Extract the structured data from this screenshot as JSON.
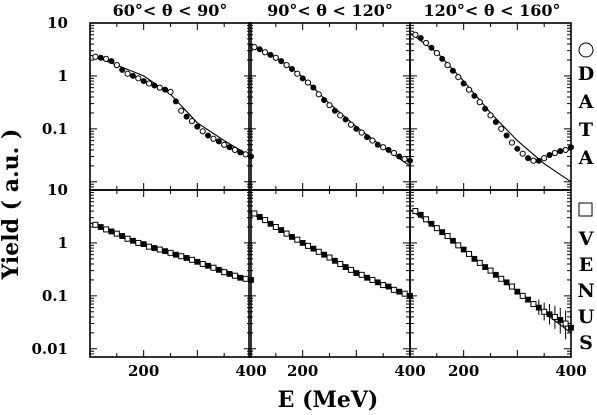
{
  "chart_data": {
    "type": "scatter",
    "xlabel": "E (MeV)",
    "ylabel": "Yield ( a.u. )",
    "yscale": "log",
    "ylim": [
      0.007,
      10
    ],
    "xlim": [
      100,
      400
    ],
    "x_ticks": [
      200,
      400
    ],
    "y_ticks_top": [
      "10",
      "1",
      "0.1"
    ],
    "y_ticks_bottom": [
      "10",
      "1",
      "0.1",
      "0.01"
    ],
    "column_titles": [
      "60°< θ < 90°",
      "90°< θ < 120°",
      "120°< θ < 160°"
    ],
    "row_legends": [
      {
        "marker": "circle",
        "letters": [
          "D",
          "A",
          "T",
          "A"
        ]
      },
      {
        "marker": "square",
        "letters": [
          "V",
          "E",
          "N",
          "U",
          "S"
        ]
      }
    ],
    "panels": [
      {
        "row": 0,
        "col": 0,
        "title": "60°< θ < 90°",
        "data_x": [
          110,
          120,
          130,
          140,
          150,
          160,
          170,
          180,
          190,
          200,
          210,
          220,
          230,
          240,
          250,
          260,
          270,
          280,
          290,
          300,
          310,
          320,
          330,
          340,
          350,
          360,
          370,
          380,
          390,
          400
        ],
        "data_y": [
          2.3,
          2.2,
          2.1,
          1.9,
          1.6,
          1.3,
          1.1,
          1.0,
          0.9,
          0.8,
          0.72,
          0.66,
          0.6,
          0.55,
          0.5,
          0.33,
          0.22,
          0.17,
          0.14,
          0.11,
          0.09,
          0.075,
          0.065,
          0.058,
          0.05,
          0.045,
          0.04,
          0.036,
          0.033,
          0.03
        ],
        "fit_x": [
          100,
          150,
          200,
          250,
          300,
          350,
          400
        ],
        "fit_y": [
          2.5,
          1.6,
          1.0,
          0.45,
          0.13,
          0.06,
          0.03
        ]
      },
      {
        "row": 0,
        "col": 1,
        "title": "90°< θ < 120°",
        "data_x": [
          110,
          120,
          130,
          140,
          150,
          160,
          170,
          180,
          190,
          200,
          210,
          220,
          230,
          240,
          250,
          260,
          270,
          280,
          290,
          300,
          310,
          320,
          330,
          340,
          350,
          360,
          370,
          380,
          390,
          400
        ],
        "data_y": [
          3.5,
          3.2,
          2.8,
          2.5,
          2.2,
          1.9,
          1.6,
          1.35,
          1.1,
          0.9,
          0.75,
          0.6,
          0.45,
          0.35,
          0.28,
          0.22,
          0.18,
          0.15,
          0.12,
          0.1,
          0.085,
          0.07,
          0.06,
          0.05,
          0.045,
          0.04,
          0.035,
          0.03,
          0.027,
          0.025
        ],
        "fit_x": [
          100,
          150,
          200,
          250,
          300,
          350,
          400
        ],
        "fit_y": [
          3.8,
          2.3,
          0.95,
          0.3,
          0.11,
          0.045,
          0.02
        ]
      },
      {
        "row": 0,
        "col": 2,
        "title": "120°< θ < 160°",
        "data_x": [
          110,
          120,
          130,
          140,
          150,
          160,
          170,
          180,
          190,
          200,
          210,
          220,
          230,
          240,
          250,
          260,
          270,
          280,
          290,
          300,
          310,
          320,
          330,
          340,
          350,
          360,
          370,
          380,
          390,
          400
        ],
        "data_y": [
          6.0,
          5.2,
          4.2,
          3.4,
          2.7,
          2.1,
          1.6,
          1.25,
          0.95,
          0.72,
          0.55,
          0.42,
          0.32,
          0.24,
          0.18,
          0.135,
          0.1,
          0.075,
          0.055,
          0.042,
          0.034,
          0.028,
          0.025,
          0.025,
          0.028,
          0.032,
          0.035,
          0.038,
          0.04,
          0.045
        ],
        "fit_x": [
          100,
          150,
          200,
          250,
          300,
          350,
          400
        ],
        "fit_y": [
          6.5,
          2.8,
          0.8,
          0.2,
          0.06,
          0.022,
          0.01
        ]
      },
      {
        "row": 1,
        "col": 0,
        "data_x": [
          110,
          120,
          130,
          140,
          150,
          160,
          170,
          180,
          190,
          200,
          210,
          220,
          230,
          240,
          250,
          260,
          270,
          280,
          290,
          300,
          310,
          320,
          330,
          340,
          350,
          360,
          370,
          380,
          390,
          400
        ],
        "data_y": [
          2.2,
          2.0,
          1.8,
          1.65,
          1.5,
          1.35,
          1.2,
          1.1,
          1.0,
          0.95,
          0.85,
          0.8,
          0.75,
          0.7,
          0.65,
          0.6,
          0.56,
          0.52,
          0.48,
          0.44,
          0.4,
          0.37,
          0.34,
          0.31,
          0.28,
          0.26,
          0.24,
          0.22,
          0.21,
          0.2
        ],
        "fit_x": [
          100,
          150,
          200,
          250,
          300,
          350,
          400
        ],
        "fit_y": [
          2.4,
          1.45,
          0.95,
          0.68,
          0.47,
          0.31,
          0.2
        ]
      },
      {
        "row": 1,
        "col": 1,
        "data_x": [
          110,
          120,
          130,
          140,
          150,
          160,
          170,
          180,
          190,
          200,
          210,
          220,
          230,
          240,
          250,
          260,
          270,
          280,
          290,
          300,
          310,
          320,
          330,
          340,
          350,
          360,
          370,
          380,
          390,
          400
        ],
        "data_y": [
          3.6,
          3.1,
          2.7,
          2.3,
          2.0,
          1.75,
          1.5,
          1.3,
          1.15,
          1.0,
          0.88,
          0.78,
          0.68,
          0.6,
          0.53,
          0.46,
          0.4,
          0.35,
          0.31,
          0.27,
          0.25,
          0.22,
          0.2,
          0.18,
          0.16,
          0.15,
          0.13,
          0.12,
          0.11,
          0.1
        ],
        "fit_x": [
          100,
          150,
          200,
          250,
          300,
          350,
          400
        ],
        "fit_y": [
          3.8,
          2.0,
          1.0,
          0.55,
          0.29,
          0.17,
          0.1
        ]
      },
      {
        "row": 1,
        "col": 2,
        "data_x": [
          110,
          120,
          130,
          140,
          150,
          160,
          170,
          180,
          190,
          200,
          210,
          220,
          230,
          240,
          250,
          260,
          270,
          280,
          290,
          300,
          310,
          320,
          330,
          340,
          350,
          360,
          370,
          380,
          390,
          400
        ],
        "data_y": [
          4.0,
          3.4,
          2.8,
          2.3,
          1.9,
          1.6,
          1.35,
          1.1,
          0.9,
          0.75,
          0.62,
          0.5,
          0.42,
          0.35,
          0.3,
          0.25,
          0.21,
          0.18,
          0.15,
          0.12,
          0.1,
          0.085,
          0.07,
          0.06,
          0.05,
          0.045,
          0.04,
          0.035,
          0.03,
          0.025
        ],
        "data_err": [
          0,
          0,
          0,
          0,
          0,
          0,
          0,
          0,
          0,
          0,
          0,
          0,
          0,
          0,
          0,
          0,
          0,
          0,
          0,
          0,
          0,
          0,
          0,
          0.3,
          0.35,
          0.4,
          0.45,
          0.5,
          0.55,
          0.6
        ],
        "fit_x": [
          100,
          150,
          200,
          250,
          300,
          350,
          400
        ],
        "fit_y": [
          4.3,
          1.85,
          0.75,
          0.3,
          0.12,
          0.048,
          0.02
        ]
      }
    ]
  }
}
